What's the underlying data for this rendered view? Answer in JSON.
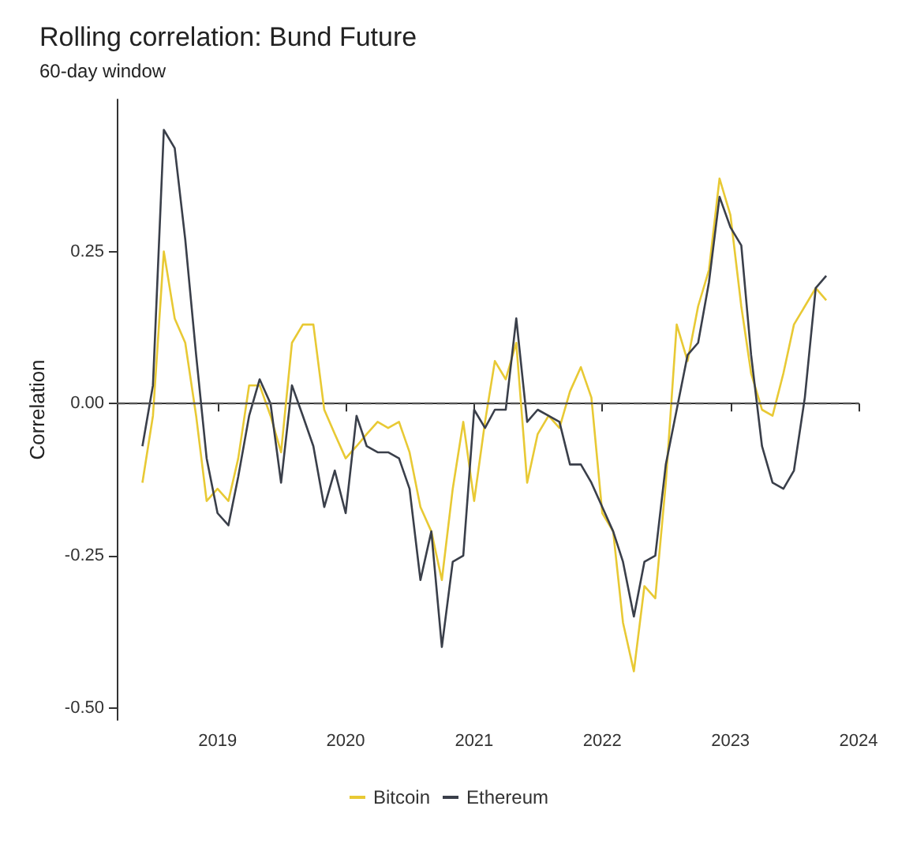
{
  "chart_data": {
    "type": "line",
    "title": "Rolling correlation: Bund Future",
    "subtitle": "60-day window",
    "ylabel": "Correlation",
    "x": [
      "2018-06-01",
      "2018-07-01",
      "2018-08-01",
      "2018-09-01",
      "2018-10-01",
      "2018-11-01",
      "2018-12-01",
      "2019-01-01",
      "2019-02-01",
      "2019-03-01",
      "2019-04-01",
      "2019-05-01",
      "2019-06-01",
      "2019-07-01",
      "2019-08-01",
      "2019-09-01",
      "2019-10-01",
      "2019-11-01",
      "2019-12-01",
      "2020-01-01",
      "2020-02-01",
      "2020-03-01",
      "2020-04-01",
      "2020-05-01",
      "2020-06-01",
      "2020-07-01",
      "2020-08-01",
      "2020-09-01",
      "2020-10-01",
      "2020-11-01",
      "2020-12-01",
      "2021-01-01",
      "2021-02-01",
      "2021-03-01",
      "2021-04-01",
      "2021-05-01",
      "2021-06-01",
      "2021-07-01",
      "2021-08-01",
      "2021-09-01",
      "2021-10-01",
      "2021-11-01",
      "2021-12-01",
      "2022-01-01",
      "2022-02-01",
      "2022-03-01",
      "2022-04-01",
      "2022-05-01",
      "2022-06-01",
      "2022-07-01",
      "2022-08-01",
      "2022-09-01",
      "2022-10-01",
      "2022-11-01",
      "2022-12-01",
      "2023-01-01",
      "2023-02-01",
      "2023-03-01",
      "2023-04-01",
      "2023-05-01",
      "2023-06-01",
      "2023-07-01",
      "2023-08-01",
      "2023-09-01",
      "2023-10-01"
    ],
    "series": [
      {
        "name": "Bitcoin",
        "color": "#e8c934",
        "values": [
          -0.13,
          -0.02,
          0.25,
          0.14,
          0.1,
          -0.02,
          -0.16,
          -0.14,
          -0.16,
          -0.09,
          0.03,
          0.03,
          -0.02,
          -0.08,
          0.1,
          0.13,
          0.13,
          -0.01,
          -0.05,
          -0.09,
          -0.07,
          -0.05,
          -0.03,
          -0.04,
          -0.03,
          -0.08,
          -0.17,
          -0.21,
          -0.29,
          -0.14,
          -0.03,
          -0.16,
          -0.03,
          0.07,
          0.04,
          0.1,
          -0.13,
          -0.05,
          -0.02,
          -0.04,
          0.02,
          0.06,
          0.01,
          -0.18,
          -0.21,
          -0.36,
          -0.44,
          -0.3,
          -0.32,
          -0.13,
          0.13,
          0.07,
          0.16,
          0.22,
          0.37,
          0.31,
          0.16,
          0.05,
          -0.01,
          -0.02,
          0.05,
          0.13,
          0.16,
          0.19,
          0.17
        ]
      },
      {
        "name": "Ethereum",
        "color": "#3a3f4a",
        "values": [
          -0.07,
          0.03,
          0.45,
          0.42,
          0.27,
          0.08,
          -0.09,
          -0.18,
          -0.2,
          -0.12,
          -0.02,
          0.04,
          0.0,
          -0.13,
          0.03,
          -0.02,
          -0.07,
          -0.17,
          -0.11,
          -0.18,
          -0.02,
          -0.07,
          -0.08,
          -0.08,
          -0.09,
          -0.14,
          -0.29,
          -0.21,
          -0.4,
          -0.26,
          -0.25,
          -0.01,
          -0.04,
          -0.01,
          -0.01,
          0.14,
          -0.03,
          -0.01,
          -0.02,
          -0.03,
          -0.1,
          -0.1,
          -0.13,
          -0.17,
          -0.21,
          -0.26,
          -0.35,
          -0.26,
          -0.25,
          -0.1,
          -0.01,
          0.08,
          0.1,
          0.2,
          0.34,
          0.29,
          0.26,
          0.08,
          -0.07,
          -0.13,
          -0.14,
          -0.11,
          0.01,
          0.19,
          0.21
        ]
      }
    ],
    "xlim": [
      "2018-03-20",
      "2024-01-01"
    ],
    "xticks": [
      {
        "value": "2019-01-01",
        "label": "2019"
      },
      {
        "value": "2020-01-01",
        "label": "2020"
      },
      {
        "value": "2021-01-01",
        "label": "2021"
      },
      {
        "value": "2022-01-01",
        "label": "2022"
      },
      {
        "value": "2023-01-01",
        "label": "2023"
      },
      {
        "value": "2024-01-01",
        "label": "2024"
      }
    ],
    "ylim": [
      -0.52,
      0.5
    ],
    "yticks": [
      {
        "value": -0.5,
        "label": "-0.50"
      },
      {
        "value": -0.25,
        "label": "-0.25"
      },
      {
        "value": 0,
        "label": "0.00"
      },
      {
        "value": 0.25,
        "label": "0.25"
      }
    ],
    "ref_lines": [
      {
        "axis": "y",
        "value": 0,
        "label": null,
        "line_style": "dashed",
        "color": "#555555"
      }
    ],
    "legend": "bottom",
    "marker": "none",
    "line_style": "solid"
  }
}
